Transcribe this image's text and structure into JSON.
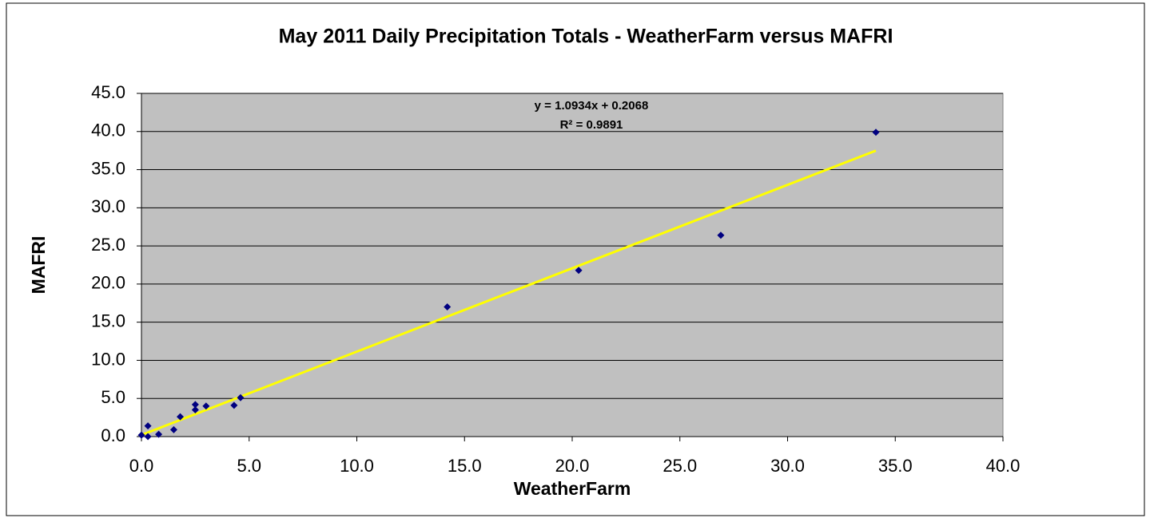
{
  "chart_data": {
    "type": "scatter",
    "title": "May 2011 Daily Precipitation Totals - WeatherFarm versus MAFRI",
    "x_label": "WeatherFarm",
    "y_label": "MAFRI",
    "series": [
      {
        "name": "MAFRI",
        "color": "#000080",
        "x": [
          0.0,
          0.3,
          0.3,
          0.8,
          1.5,
          1.8,
          2.5,
          2.5,
          3.0,
          4.3,
          4.6,
          14.2,
          20.3,
          26.9,
          34.1
        ],
        "values": [
          0.2,
          0.0,
          1.4,
          0.3,
          0.9,
          2.6,
          3.5,
          4.2,
          4.0,
          4.1,
          5.1,
          17.0,
          21.8,
          26.4,
          39.9
        ]
      }
    ],
    "trendline": {
      "slope": 1.0934,
      "intercept": 0.2068,
      "color": "#ffff00",
      "equation": "y = 1.0934x + 0.2068",
      "r_squared": "R² = 0.9891"
    },
    "xlim": [
      0,
      40
    ],
    "xticks": [
      {
        "value": 0,
        "label": "0.0"
      },
      {
        "value": 5,
        "label": "5.0"
      },
      {
        "value": 10,
        "label": "10.0"
      },
      {
        "value": 15,
        "label": "15.0"
      },
      {
        "value": 20,
        "label": "20.0"
      },
      {
        "value": 25,
        "label": "25.0"
      },
      {
        "value": 30,
        "label": "30.0"
      },
      {
        "value": 35,
        "label": "35.0"
      },
      {
        "value": 40,
        "label": "40.0"
      }
    ],
    "ylim": [
      0,
      45
    ],
    "yticks": [
      {
        "value": 0,
        "label": "0.0"
      },
      {
        "value": 5,
        "label": "5.0"
      },
      {
        "value": 10,
        "label": "10.0"
      },
      {
        "value": 15,
        "label": "15.0"
      },
      {
        "value": 20,
        "label": "20.0"
      },
      {
        "value": 25,
        "label": "25.0"
      },
      {
        "value": 30,
        "label": "30.0"
      },
      {
        "value": 35,
        "label": "35.0"
      },
      {
        "value": 40,
        "label": "40.0"
      },
      {
        "value": 45,
        "label": "45.0"
      }
    ],
    "grid": true,
    "plot_background": "#c0c0c0"
  }
}
